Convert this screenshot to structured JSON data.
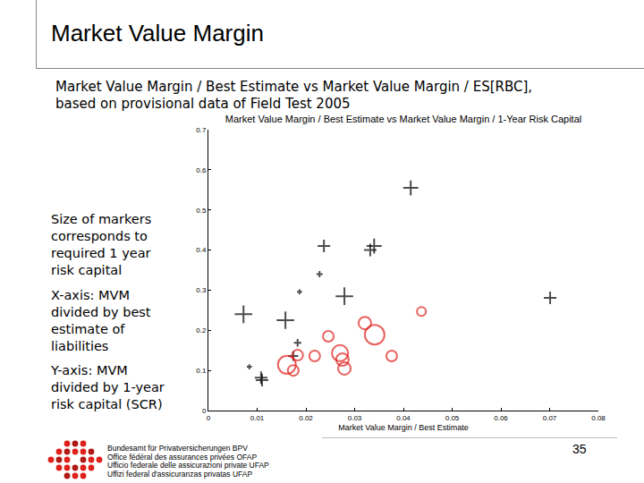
{
  "slide": {
    "title": "Market Value Margin",
    "subtitle": [
      "Market Value Margin / Best Estimate vs Market Value Margin / ES[RBC],",
      "based on provisional data of Field Test 2005"
    ],
    "notes": [
      [
        "Size of markers",
        "corresponds to",
        "required 1 year",
        "risk capital"
      ],
      [
        "X-axis: MVM",
        "divided by best",
        "estimate of",
        "liabilities"
      ],
      [
        "Y-axis: MVM",
        "divided by 1-year",
        "risk capital (SCR)"
      ]
    ],
    "footer": [
      "Bundesamt für Privatversicherungen BPV",
      "Office fédéral des assurances privées OFAP",
      "Ufficio federale delle assicurazioni private UFAP",
      "Uffizi federal d'assicuranzas privatas UFAP"
    ],
    "page": 35
  },
  "chart_data": {
    "type": "scatter",
    "title": "Market Value Margin / Best Estimate vs Market Value Margin / 1-Year Risk Capital",
    "x_label": "Market Value Margin / Best Estimate",
    "xlim": [
      0,
      0.08
    ],
    "xticks": [
      0,
      0.01,
      0.02,
      0.03,
      0.04,
      0.05,
      0.06,
      0.07,
      0.08
    ],
    "ylim": [
      0,
      0.7
    ],
    "yticks": [
      0,
      0.1,
      0.2,
      0.3,
      0.4,
      0.5,
      0.6,
      0.7
    ],
    "grid": false,
    "series": [
      {
        "marker": "cross",
        "color": "#000000",
        "x": [
          0.0415,
          0.0237,
          0.034,
          0.0332,
          0.0228,
          0.0187,
          0.0279,
          0.0072,
          0.0158,
          0.0701,
          0.0183,
          0.0174,
          0.0084,
          0.0108,
          0.011
        ],
        "y": [
          0.555,
          0.41,
          0.41,
          0.4,
          0.34,
          0.296,
          0.285,
          0.24,
          0.225,
          0.281,
          0.169,
          0.136,
          0.109,
          0.082,
          0.076
        ],
        "sizes": [
          12,
          10,
          12,
          10,
          5,
          4,
          14,
          14,
          14,
          10,
          6,
          8,
          4,
          10,
          10
        ]
      },
      {
        "marker": "circle",
        "color": "#e0201b",
        "x": [
          0.0437,
          0.0321,
          0.0341,
          0.0246,
          0.0183,
          0.0218,
          0.0161,
          0.0174,
          0.027,
          0.0279,
          0.0275,
          0.0376
        ],
        "y": [
          0.247,
          0.218,
          0.189,
          0.185,
          0.138,
          0.136,
          0.114,
          0.1,
          0.143,
          0.105,
          0.127,
          0.136
        ],
        "sizes": [
          10,
          14,
          22,
          12,
          12,
          12,
          20,
          12,
          18,
          14,
          14,
          12
        ]
      }
    ]
  }
}
